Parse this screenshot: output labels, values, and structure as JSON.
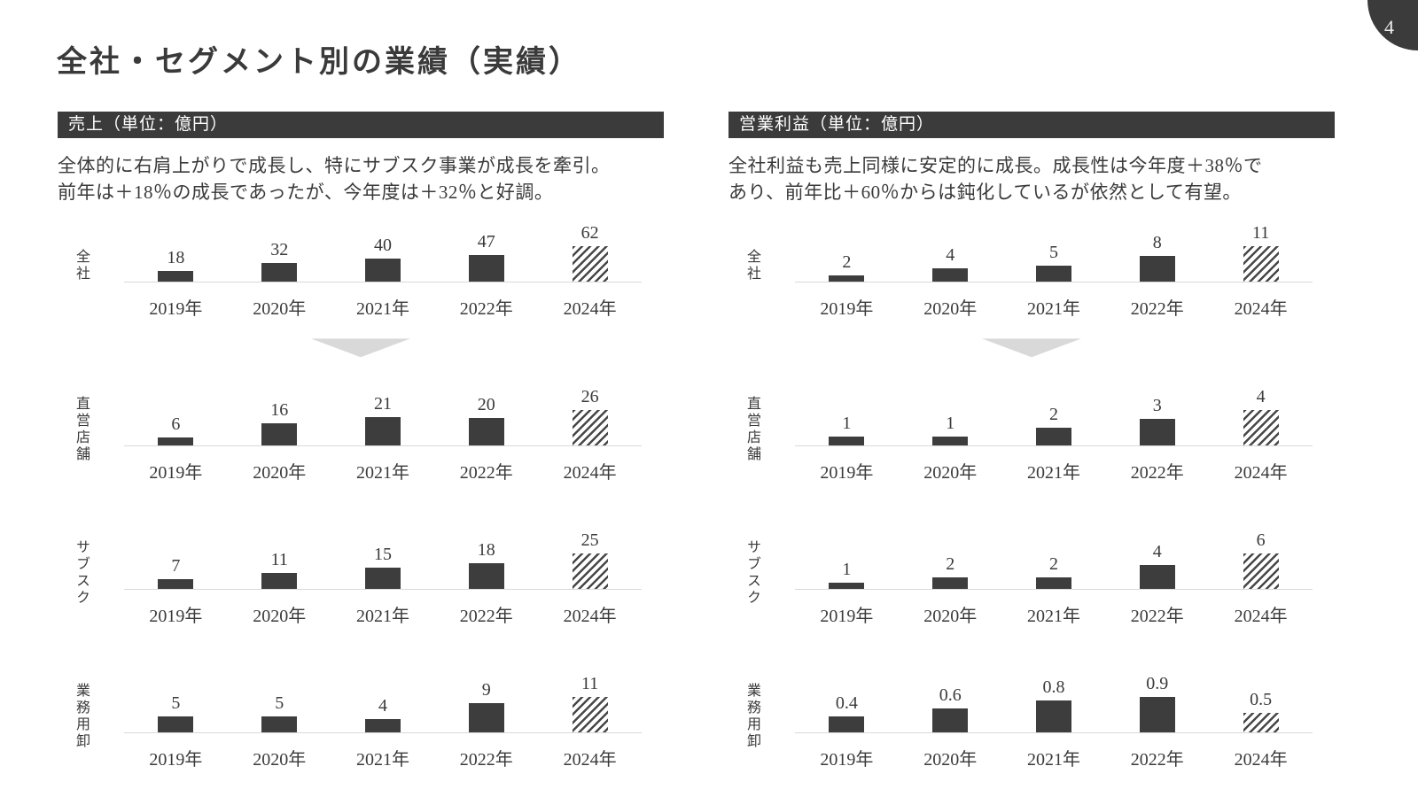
{
  "page": {
    "number": "4",
    "title": "全社・セグメント別の業績（実績）"
  },
  "panels": [
    {
      "header": "売上（単位：億円）",
      "description_line1": "全体的に右肩上がりで成長し、特にサブスク事業が成長を牽引。",
      "description_line2": "前年は＋18％の成長であったが、今年度は＋32％と好調。"
    },
    {
      "header": "営業利益（単位：億円）",
      "description_line1": "全社利益も売上同様に安定的に成長。成長性は今年度＋38％で",
      "description_line2": "あり、前年比＋60％からは鈍化しているが依然として有望。"
    }
  ],
  "chart_data": [
    {
      "type": "bar",
      "title": "売上（単位：億円）",
      "categories": [
        "2019年",
        "2020年",
        "2021年",
        "2022年",
        "2024年"
      ],
      "series": [
        {
          "name": "全社",
          "values": [
            18,
            32,
            40,
            47,
            62
          ]
        },
        {
          "name": "直営店舗",
          "values": [
            6,
            16,
            21,
            20,
            26
          ]
        },
        {
          "name": "サブスク",
          "values": [
            7,
            11,
            15,
            18,
            25
          ]
        },
        {
          "name": "業務用卸",
          "values": [
            5,
            5,
            4,
            9,
            11
          ]
        }
      ],
      "value_labels": true,
      "forecast_category": "2024年",
      "forecast_style": "hatched",
      "bar_color": "#3d3d3d",
      "baseline_color": "#d9d9d9",
      "per_row_scale": true,
      "separator_triangle_after_row": "全社"
    },
    {
      "type": "bar",
      "title": "営業利益（単位：億円）",
      "categories": [
        "2019年",
        "2020年",
        "2021年",
        "2022年",
        "2024年"
      ],
      "series": [
        {
          "name": "全社",
          "values": [
            2,
            4,
            5,
            8,
            11
          ]
        },
        {
          "name": "直営店舗",
          "values": [
            1,
            1,
            2,
            3,
            4
          ]
        },
        {
          "name": "サブスク",
          "values": [
            1,
            2,
            2,
            4,
            6
          ]
        },
        {
          "name": "業務用卸",
          "values": [
            0.4,
            0.6,
            0.8,
            0.9,
            0.5
          ]
        }
      ],
      "value_labels": true,
      "forecast_category": "2024年",
      "forecast_style": "hatched",
      "bar_color": "#3d3d3d",
      "baseline_color": "#d9d9d9",
      "per_row_scale": true,
      "separator_triangle_after_row": "全社"
    }
  ],
  "colors": {
    "accent_dark": "#3b3b3b",
    "text": "#3a3a3a",
    "triangle_gray": "#d9d9d9",
    "bar_dark": "#3d3d3d"
  }
}
